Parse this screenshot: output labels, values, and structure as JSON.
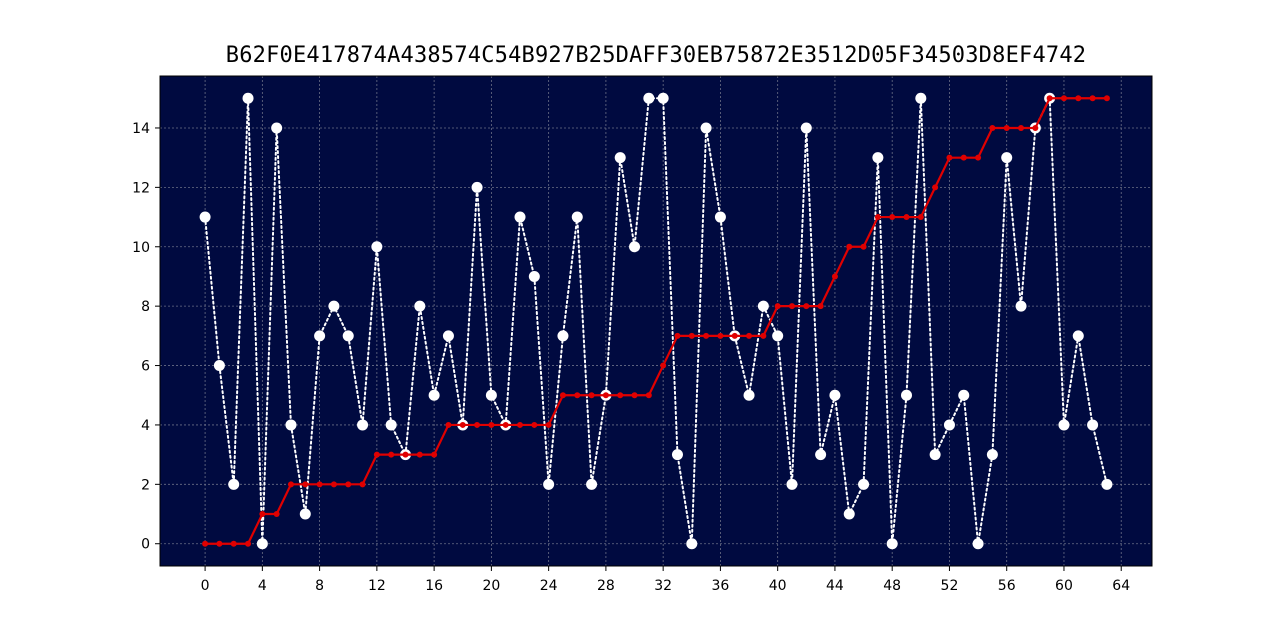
{
  "chart_data": {
    "type": "line",
    "title": "B62F0E417874A438574C54B927B25DAFF30EB75872E3512D05F34503D8EF4742",
    "xlabel": "",
    "ylabel": "",
    "xlim": [
      -3.15,
      66.15
    ],
    "ylim": [
      -0.75,
      15.75
    ],
    "xticks": [
      0,
      4,
      8,
      12,
      16,
      20,
      24,
      28,
      32,
      36,
      40,
      44,
      48,
      52,
      56,
      60,
      64
    ],
    "yticks": [
      0,
      2,
      4,
      6,
      8,
      10,
      12,
      14
    ],
    "grid": true,
    "background": "#000a40",
    "series": [
      {
        "style": "dotted-white-markers",
        "color": "#ffffff",
        "x": [
          0,
          1,
          2,
          3,
          4,
          5,
          6,
          7,
          8,
          9,
          10,
          11,
          12,
          13,
          14,
          15,
          16,
          17,
          18,
          19,
          20,
          21,
          22,
          23,
          24,
          25,
          26,
          27,
          28,
          29,
          30,
          31,
          32,
          33,
          34,
          35,
          36,
          37,
          38,
          39,
          40,
          41,
          42,
          43,
          44,
          45,
          46,
          47,
          48,
          49,
          50,
          51,
          52,
          53,
          54,
          55,
          56,
          57,
          58,
          59,
          60,
          61,
          62,
          63
        ],
        "values": [
          11,
          6,
          2,
          15,
          0,
          14,
          4,
          1,
          7,
          8,
          7,
          4,
          10,
          4,
          3,
          8,
          5,
          7,
          4,
          12,
          5,
          4,
          11,
          9,
          2,
          7,
          11,
          2,
          5,
          13,
          10,
          15,
          15,
          3,
          0,
          14,
          11,
          7,
          5,
          8,
          7,
          2,
          14,
          3,
          5,
          1,
          2,
          13,
          0,
          5,
          15,
          3,
          4,
          5,
          0,
          3,
          13,
          8,
          14,
          15,
          4,
          7,
          4,
          2
        ]
      },
      {
        "style": "solid-red-small-markers",
        "color": "#e00000",
        "x": [
          0,
          1,
          2,
          3,
          4,
          5,
          6,
          7,
          8,
          9,
          10,
          11,
          12,
          13,
          14,
          15,
          16,
          17,
          18,
          19,
          20,
          21,
          22,
          23,
          24,
          25,
          26,
          27,
          28,
          29,
          30,
          31,
          32,
          33,
          34,
          35,
          36,
          37,
          38,
          39,
          40,
          41,
          42,
          43,
          44,
          45,
          46,
          47,
          48,
          49,
          50,
          51,
          52,
          53,
          54,
          55,
          56,
          57,
          58,
          59,
          60,
          61,
          62,
          63
        ],
        "values": [
          0,
          0,
          0,
          0,
          1,
          1,
          2,
          2,
          2,
          2,
          2,
          2,
          3,
          3,
          3,
          3,
          3,
          4,
          4,
          4,
          4,
          4,
          4,
          4,
          4,
          5,
          5,
          5,
          5,
          5,
          5,
          5,
          6,
          7,
          7,
          7,
          7,
          7,
          7,
          7,
          8,
          8,
          8,
          8,
          9,
          10,
          10,
          11,
          11,
          11,
          11,
          12,
          13,
          13,
          13,
          14,
          14,
          14,
          14,
          15,
          15,
          15,
          15,
          15
        ]
      }
    ]
  }
}
